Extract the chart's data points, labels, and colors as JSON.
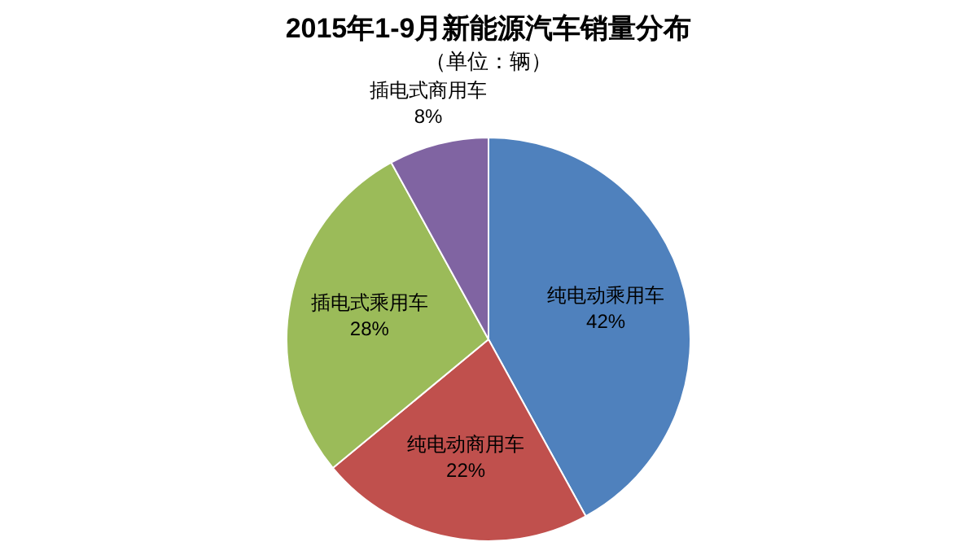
{
  "chart_data": {
    "type": "pie",
    "title": "2015年1-9月新能源汽车销量分布",
    "subtitle": "（单位：辆）",
    "categories": [
      "纯电动乘用车",
      "纯电动商用车",
      "插电式乘用车",
      "插电式商用车"
    ],
    "values": [
      42,
      22,
      28,
      8
    ],
    "colors": [
      "#4f81bd",
      "#c0504d",
      "#9bbb59",
      "#8064a2"
    ],
    "value_labels": [
      "42%",
      "22%",
      "28%",
      "8%"
    ],
    "legend": false
  }
}
